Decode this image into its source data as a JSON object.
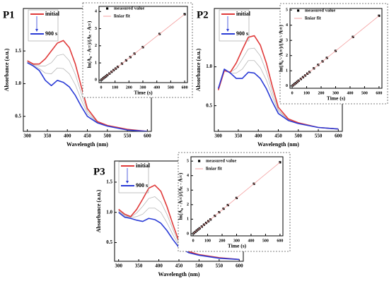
{
  "chart_data": [
    {
      "type": "line",
      "title": "P1",
      "xlabel": "Wavelength (nm)",
      "ylabel": "Absorbance (a.u.)",
      "x": [
        300,
        315,
        330,
        345,
        360,
        375,
        390,
        405,
        420,
        435,
        450,
        475,
        500,
        550,
        600
      ],
      "series": [
        {
          "color": "#b8b8b8",
          "values": [
            1.34,
            1.29,
            1.27,
            1.27,
            1.32,
            1.43,
            1.45,
            1.35,
            1.14,
            0.85,
            0.58,
            0.41,
            0.36,
            0.3,
            0.27
          ]
        },
        {
          "color": "#b8b8b8",
          "values": [
            1.33,
            1.28,
            1.23,
            1.16,
            1.15,
            1.24,
            1.23,
            1.15,
            0.98,
            0.75,
            0.54,
            0.41,
            0.35,
            0.29,
            0.27
          ]
        },
        {
          "name": "initial",
          "color": "#e03a3a",
          "values": [
            1.35,
            1.3,
            1.3,
            1.38,
            1.5,
            1.62,
            1.66,
            1.55,
            1.3,
            0.95,
            0.62,
            0.42,
            0.36,
            0.3,
            0.27
          ]
        },
        {
          "name": "900 s",
          "color": "#2a3bd6",
          "values": [
            1.32,
            1.27,
            1.2,
            1.05,
            0.97,
            1.05,
            1.02,
            0.95,
            0.82,
            0.65,
            0.5,
            0.4,
            0.35,
            0.29,
            0.27
          ]
        }
      ],
      "xlim": [
        290,
        610
      ],
      "xticks": [
        300,
        350,
        400,
        450,
        500,
        550,
        600
      ],
      "ylim": [
        0.27,
        2.15
      ],
      "yticks": [
        0.5,
        {
          "value": 1,
          "label": "1.0"
        },
        1.5
      ]
    },
    {
      "type": "scatter",
      "xlabel": "Time (s)",
      "ylabel": "ln(A₀ - A∞)/(Aₜ - A∞)",
      "x": [
        5,
        15,
        25,
        35,
        45,
        60,
        75,
        90,
        105,
        120,
        150,
        180,
        210,
        240,
        300,
        420,
        600
      ],
      "series": [
        {
          "name": "measured value",
          "color": "#000000",
          "kind": "points",
          "values": [
            0.03,
            0.1,
            0.16,
            0.22,
            0.29,
            0.38,
            0.48,
            0.58,
            0.67,
            0.77,
            0.96,
            1.15,
            1.34,
            1.54,
            1.92,
            2.69,
            3.84
          ]
        },
        {
          "name": "liniar fit",
          "color": "#f4a0a0",
          "kind": "line",
          "x": [
            0,
            600
          ],
          "values": [
            0,
            3.84
          ]
        }
      ],
      "xlim": [
        -15,
        620
      ],
      "xticks": [
        0,
        100,
        200,
        300,
        400,
        500,
        600
      ],
      "ylim": [
        -0.15,
        4.3
      ],
      "yticks": [
        0,
        1,
        2,
        3,
        4
      ]
    },
    {
      "type": "line",
      "title": "P2",
      "xlabel": "Wavelength (nm)",
      "ylabel": "Absorbance (a.u.)",
      "x": [
        300,
        315,
        330,
        345,
        360,
        375,
        390,
        405,
        420,
        435,
        450,
        475,
        500,
        550,
        600
      ],
      "series": [
        {
          "color": "#b8b8b8",
          "values": [
            0.71,
            0.96,
            0.93,
            0.98,
            1.1,
            1.23,
            1.24,
            1.14,
            0.94,
            0.68,
            0.45,
            0.32,
            0.28,
            0.22,
            0.2
          ]
        },
        {
          "color": "#b8b8b8",
          "values": [
            0.71,
            0.96,
            0.92,
            0.92,
            0.97,
            1.08,
            1.08,
            0.99,
            0.83,
            0.62,
            0.43,
            0.32,
            0.27,
            0.22,
            0.2
          ]
        },
        {
          "name": "initial",
          "color": "#e03a3a",
          "values": [
            0.7,
            0.95,
            0.93,
            1.05,
            1.22,
            1.38,
            1.4,
            1.28,
            1.05,
            0.75,
            0.48,
            0.33,
            0.28,
            0.22,
            0.2
          ]
        },
        {
          "name": "900 s",
          "color": "#2a3bd6",
          "values": [
            0.72,
            0.97,
            0.92,
            0.85,
            0.85,
            0.93,
            0.92,
            0.85,
            0.72,
            0.55,
            0.4,
            0.31,
            0.27,
            0.22,
            0.2
          ]
        }
      ],
      "xlim": [
        290,
        610
      ],
      "xticks": [
        300,
        350,
        400,
        450,
        500,
        550,
        600
      ],
      "ylim": [
        0.17,
        1.75
      ],
      "yticks": [
        0.5,
        {
          "value": 1,
          "label": "1.0"
        }
      ]
    },
    {
      "type": "scatter",
      "xlabel": "Time (s)",
      "ylabel": "ln(A₀ - A∞)/(Aₜ - A∞)",
      "x": [
        5,
        15,
        25,
        35,
        45,
        60,
        75,
        90,
        105,
        120,
        150,
        180,
        210,
        240,
        300,
        420,
        600
      ],
      "series": [
        {
          "name": "measured value",
          "color": "#000000",
          "kind": "points",
          "values": [
            0.04,
            0.12,
            0.19,
            0.27,
            0.35,
            0.46,
            0.58,
            0.69,
            0.81,
            0.92,
            1.16,
            1.39,
            1.62,
            1.85,
            2.31,
            3.23,
            4.62
          ]
        },
        {
          "name": "liniar fit",
          "color": "#f4a0a0",
          "kind": "line",
          "x": [
            0,
            600
          ],
          "values": [
            0,
            4.62
          ]
        }
      ],
      "xlim": [
        -15,
        620
      ],
      "xticks": [
        0,
        100,
        200,
        300,
        400,
        500,
        600
      ],
      "ylim": [
        -0.15,
        5.1
      ],
      "yticks": [
        0,
        1,
        2,
        3,
        4,
        5
      ]
    },
    {
      "type": "line",
      "title": "P3",
      "xlabel": "Wavelength (nm)",
      "ylabel": "Absorbance (a.u.)",
      "x": [
        300,
        315,
        330,
        345,
        360,
        375,
        390,
        405,
        420,
        435,
        450,
        475,
        500,
        550,
        600
      ],
      "series": [
        {
          "color": "#b8b8b8",
          "values": [
            1.03,
            0.95,
            0.92,
            0.99,
            1.1,
            1.23,
            1.26,
            1.17,
            0.97,
            0.72,
            0.49,
            0.34,
            0.3,
            0.25,
            0.22
          ]
        },
        {
          "color": "#b8b8b8",
          "values": [
            1.02,
            0.94,
            0.91,
            0.93,
            0.97,
            1.07,
            1.07,
            1.0,
            0.83,
            0.63,
            0.45,
            0.34,
            0.29,
            0.24,
            0.22
          ]
        },
        {
          "name": "initial",
          "color": "#e03a3a",
          "values": [
            1.05,
            0.97,
            0.93,
            1.05,
            1.22,
            1.4,
            1.45,
            1.35,
            1.1,
            0.8,
            0.52,
            0.35,
            0.3,
            0.25,
            0.22
          ]
        },
        {
          "name": "900 s",
          "color": "#2a3bd6",
          "values": [
            1.0,
            0.92,
            0.9,
            0.87,
            0.85,
            0.9,
            0.88,
            0.82,
            0.7,
            0.55,
            0.42,
            0.33,
            0.29,
            0.24,
            0.22
          ]
        }
      ],
      "xlim": [
        290,
        610
      ],
      "xticks": [
        300,
        350,
        400,
        450,
        500,
        550,
        600
      ],
      "ylim": [
        0.19,
        1.85
      ],
      "yticks": [
        0.5,
        {
          "value": 1,
          "label": "1.0"
        },
        1.5
      ]
    },
    {
      "type": "scatter",
      "xlabel": "Time (s)",
      "ylabel": "ln(A₀ - A∞)/(Aₜ - A∞)",
      "x": [
        5,
        15,
        25,
        35,
        45,
        60,
        75,
        90,
        105,
        120,
        150,
        180,
        210,
        240,
        300,
        420,
        600
      ],
      "series": [
        {
          "name": "measured value",
          "color": "#000000",
          "kind": "points",
          "values": [
            0.04,
            0.12,
            0.21,
            0.29,
            0.37,
            0.49,
            0.62,
            0.74,
            0.86,
            0.98,
            1.23,
            1.48,
            1.72,
            1.97,
            2.46,
            3.44,
            4.92
          ]
        },
        {
          "name": "liniar fit",
          "color": "#f4a0a0",
          "kind": "line",
          "x": [
            0,
            600
          ],
          "values": [
            0,
            4.92
          ]
        }
      ],
      "xlim": [
        -15,
        620
      ],
      "xticks": [
        0,
        100,
        200,
        300,
        400,
        500,
        600
      ],
      "ylim": [
        -0.15,
        5.3
      ],
      "yticks": [
        0,
        1,
        2,
        3,
        4,
        5
      ]
    }
  ]
}
